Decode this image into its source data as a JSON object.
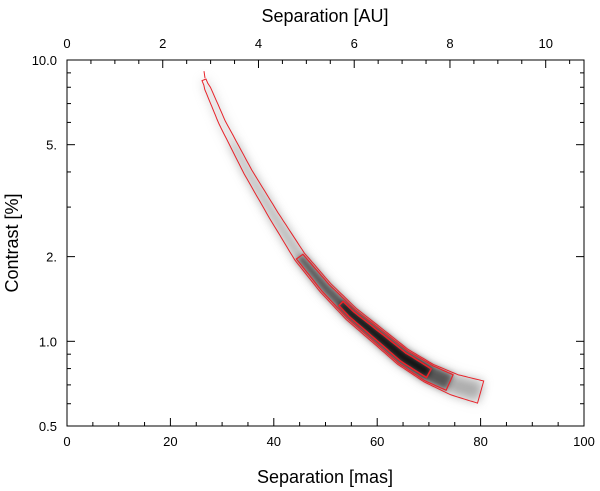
{
  "chart_data": {
    "type": "heatmap",
    "x_bottom": {
      "label": "Separation [mas]",
      "range": [
        0,
        100
      ],
      "ticks": [
        0,
        20,
        40,
        60,
        80,
        100
      ],
      "tick_labels": [
        "0",
        "20",
        "40",
        "60",
        "80",
        "100"
      ]
    },
    "x_top": {
      "label": "Separation [AU]",
      "range": [
        0,
        10.8
      ],
      "ticks": [
        0,
        2,
        4,
        6,
        8,
        10
      ],
      "tick_labels": [
        "0",
        "2",
        "4",
        "6",
        "8",
        "10"
      ]
    },
    "y": {
      "label": "Contrast [%]",
      "scale": "log",
      "range": [
        0.5,
        10.0
      ],
      "ticks": [
        0.5,
        1.0,
        2.0,
        5.0,
        10.0
      ],
      "tick_labels": [
        "0.5",
        "1.0",
        "2.",
        "5.",
        "10.0"
      ]
    },
    "ridge": [
      [
        26.5,
        8.5
      ],
      [
        30,
        6.0
      ],
      [
        35,
        4.0
      ],
      [
        40,
        2.8
      ],
      [
        45,
        2.0
      ],
      [
        50,
        1.55
      ],
      [
        55,
        1.25
      ],
      [
        60,
        1.05
      ],
      [
        65,
        0.88
      ],
      [
        70,
        0.77
      ],
      [
        75,
        0.7
      ],
      [
        80,
        0.66
      ]
    ],
    "peak": [
      62,
      0.95
    ],
    "contours": [
      {
        "level": "outer",
        "color": "#e8232a"
      },
      {
        "level": "middle",
        "color": "#e8232a"
      },
      {
        "level": "inner",
        "color": "#e8232a"
      }
    ]
  }
}
